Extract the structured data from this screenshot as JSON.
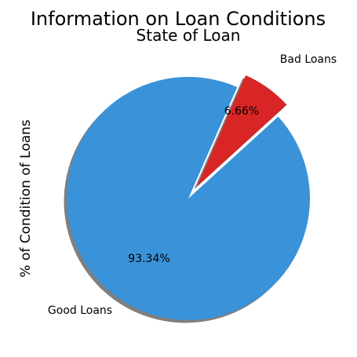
{
  "chart_data": {
    "type": "pie",
    "suptitle": "Information on Loan Conditions",
    "title": "State of Loan",
    "ylabel": "% of Condition of Loans",
    "slices": [
      {
        "label": "Good Loans",
        "value": 93.34,
        "pct_label": "93.34%",
        "color": "#3a92d8",
        "exploded": false
      },
      {
        "label": "Bad Loans",
        "value": 6.66,
        "pct_label": "6.66%",
        "color": "#d82526",
        "exploded": true
      }
    ],
    "shadow": true,
    "start_angle_deg": 66.3
  }
}
